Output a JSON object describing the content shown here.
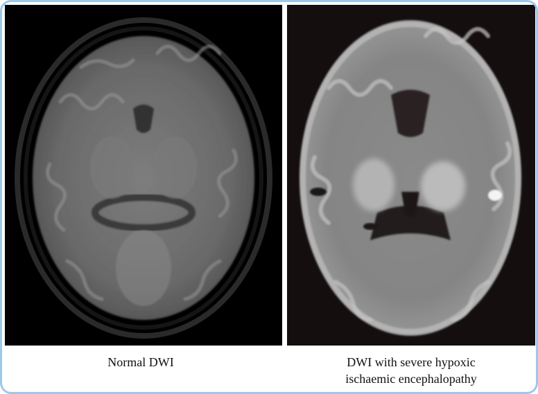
{
  "panels": [
    {
      "caption_lines": [
        "Normal DWI"
      ]
    },
    {
      "caption_lines": [
        "DWI with severe hypoxic",
        "ischaemic encephalopathy"
      ]
    }
  ],
  "colors": {
    "frame_border": "#9cc8ea",
    "background": "#000000"
  }
}
